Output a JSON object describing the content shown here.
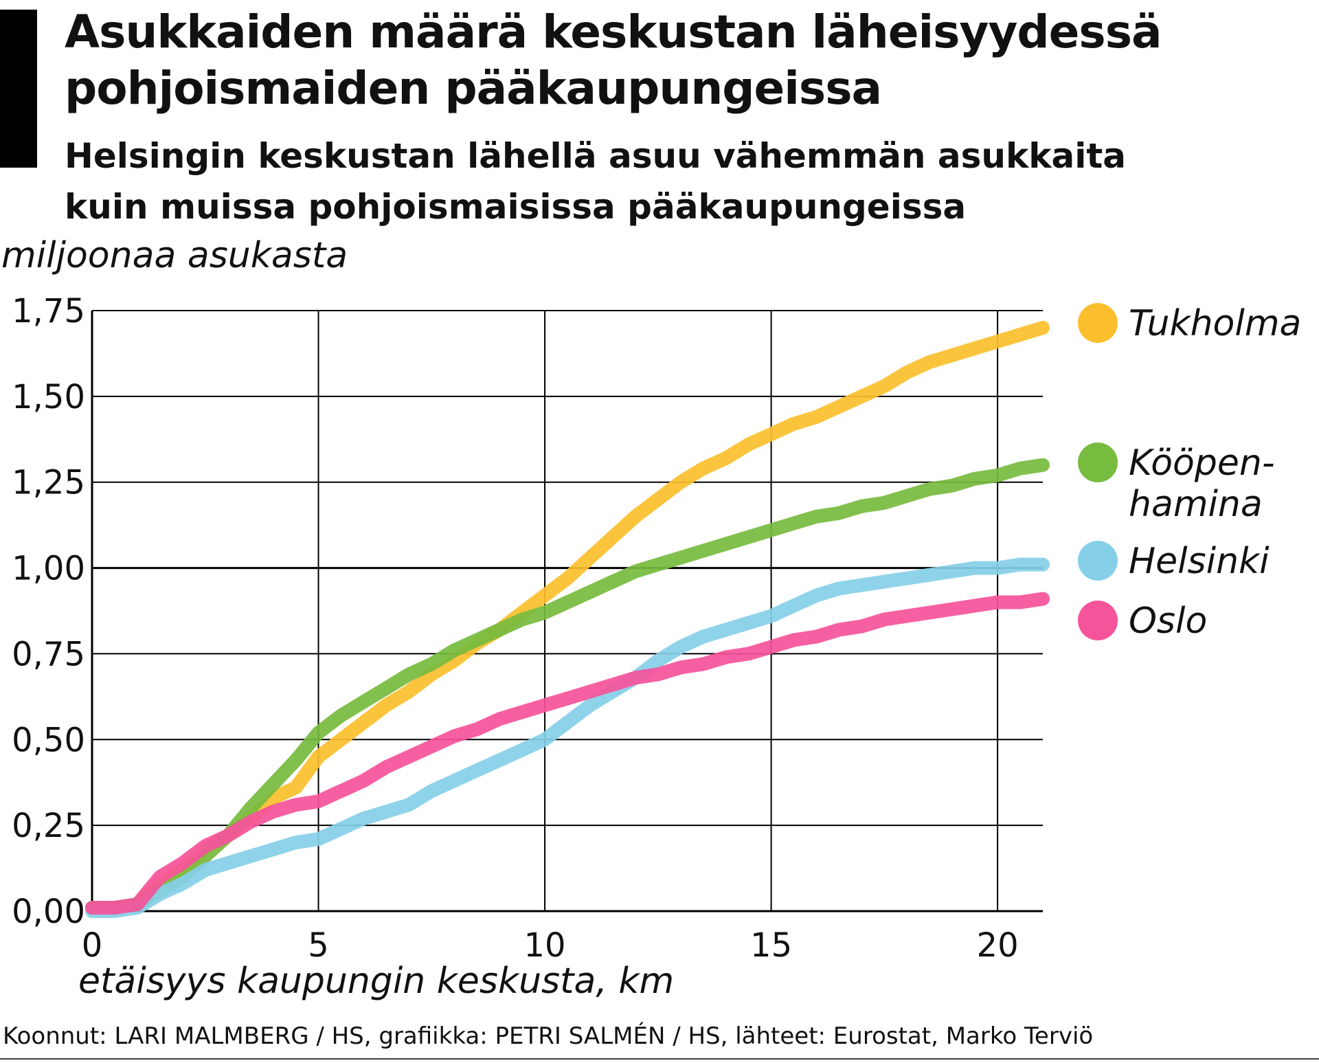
{
  "header": {
    "title_lines": [
      "Asukkaiden määrä keskustan läheisyydessä",
      "pohjoismaiden pääkaupungeissa"
    ],
    "subtitle_lines": [
      "Helsingin keskustan lähellä asuu vähemmän asukkaita",
      "kuin muissa pohjoismaisissa pääkaupungeissa"
    ]
  },
  "footer": {
    "source": "Koonnut: LARI MALMBERG / HS, grafiikka: PETRI SALMÉN / HS, lähteet: Eurostat, Marko Terviö"
  },
  "chart_data": {
    "type": "line",
    "title": "Asukkaiden määrä keskustan läheisyydessä pohjoismaiden pääkaupungeissa",
    "xlabel": "etäisyys kaupungin keskusta, km",
    "ylabel": "miljoonaa asukasta",
    "xlim": [
      0,
      21
    ],
    "ylim": [
      0,
      1.75
    ],
    "x_ticks": [
      0,
      5,
      10,
      15,
      20
    ],
    "x_tick_labels": [
      "0",
      "5",
      "10",
      "15",
      "20"
    ],
    "y_ticks": [
      0,
      0.25,
      0.5,
      0.75,
      1.0,
      1.25,
      1.5,
      1.75
    ],
    "y_tick_labels": [
      "0,00",
      "0,25",
      "0,50",
      "0,75",
      "1,00",
      "1,25",
      "1,50",
      "1,75"
    ],
    "grid": true,
    "legend_position": "right",
    "series": [
      {
        "name": "Tukholma",
        "color": "#fbbf2d",
        "legend_lines": [
          "Tukholma"
        ],
        "x": [
          0,
          0.5,
          1.0,
          1.5,
          2.0,
          2.5,
          3.0,
          3.5,
          4.0,
          4.5,
          5.0,
          5.5,
          6.0,
          6.5,
          7.0,
          7.5,
          8.0,
          8.5,
          9.0,
          9.5,
          10.0,
          10.5,
          11.0,
          11.5,
          12.0,
          12.5,
          13.0,
          13.5,
          14.0,
          14.5,
          15.0,
          15.5,
          16.0,
          16.5,
          17.0,
          17.5,
          18.0,
          18.5,
          19.0,
          19.5,
          20.0,
          20.5,
          21.0
        ],
        "y": [
          0.01,
          0.01,
          0.02,
          0.08,
          0.12,
          0.18,
          0.22,
          0.27,
          0.33,
          0.36,
          0.45,
          0.5,
          0.55,
          0.6,
          0.64,
          0.69,
          0.73,
          0.78,
          0.82,
          0.87,
          0.92,
          0.97,
          1.03,
          1.09,
          1.15,
          1.2,
          1.25,
          1.29,
          1.32,
          1.36,
          1.39,
          1.42,
          1.44,
          1.47,
          1.5,
          1.53,
          1.57,
          1.6,
          1.62,
          1.64,
          1.66,
          1.68,
          1.7
        ]
      },
      {
        "name": "Kööpenhamina",
        "color": "#77bb3f",
        "legend_lines": [
          "Kööpen-",
          "hamina"
        ],
        "x": [
          0,
          0.5,
          1.0,
          1.5,
          2.0,
          2.5,
          3.0,
          3.5,
          4.0,
          4.5,
          5.0,
          5.5,
          6.0,
          6.5,
          7.0,
          7.5,
          8.0,
          8.5,
          9.0,
          9.5,
          10.0,
          10.5,
          11.0,
          11.5,
          12.0,
          12.5,
          13.0,
          13.5,
          14.0,
          14.5,
          15.0,
          15.5,
          16.0,
          16.5,
          17.0,
          17.5,
          18.0,
          18.5,
          19.0,
          19.5,
          20.0,
          20.5,
          21.0
        ],
        "y": [
          0.01,
          0.01,
          0.02,
          0.06,
          0.1,
          0.16,
          0.22,
          0.3,
          0.37,
          0.44,
          0.52,
          0.57,
          0.61,
          0.65,
          0.69,
          0.72,
          0.76,
          0.79,
          0.82,
          0.85,
          0.87,
          0.9,
          0.93,
          0.96,
          0.99,
          1.01,
          1.03,
          1.05,
          1.07,
          1.09,
          1.11,
          1.13,
          1.15,
          1.16,
          1.18,
          1.19,
          1.21,
          1.23,
          1.24,
          1.26,
          1.27,
          1.29,
          1.3
        ]
      },
      {
        "name": "Helsinki",
        "color": "#85cfe8",
        "legend_lines": [
          "Helsinki"
        ],
        "x": [
          0,
          0.5,
          1.0,
          1.5,
          2.0,
          2.5,
          3.0,
          3.5,
          4.0,
          4.5,
          5.0,
          5.5,
          6.0,
          6.5,
          7.0,
          7.5,
          8.0,
          8.5,
          9.0,
          9.5,
          10.0,
          10.5,
          11.0,
          11.5,
          12.0,
          12.5,
          13.0,
          13.5,
          14.0,
          14.5,
          15.0,
          15.5,
          16.0,
          16.5,
          17.0,
          17.5,
          18.0,
          18.5,
          19.0,
          19.5,
          20.0,
          20.5,
          21.0
        ],
        "y": [
          0.0,
          0.0,
          0.01,
          0.05,
          0.08,
          0.12,
          0.14,
          0.16,
          0.18,
          0.2,
          0.21,
          0.24,
          0.27,
          0.29,
          0.31,
          0.35,
          0.38,
          0.41,
          0.44,
          0.47,
          0.5,
          0.55,
          0.6,
          0.64,
          0.68,
          0.73,
          0.77,
          0.8,
          0.82,
          0.84,
          0.86,
          0.89,
          0.92,
          0.94,
          0.95,
          0.96,
          0.97,
          0.98,
          0.99,
          1.0,
          1.0,
          1.01,
          1.01
        ]
      },
      {
        "name": "Oslo",
        "color": "#f5539a",
        "legend_lines": [
          "Oslo"
        ],
        "x": [
          0,
          0.5,
          1.0,
          1.5,
          2.0,
          2.5,
          3.0,
          3.5,
          4.0,
          4.5,
          5.0,
          5.5,
          6.0,
          6.5,
          7.0,
          7.5,
          8.0,
          8.5,
          9.0,
          9.5,
          10.0,
          10.5,
          11.0,
          11.5,
          12.0,
          12.5,
          13.0,
          13.5,
          14.0,
          14.5,
          15.0,
          15.5,
          16.0,
          16.5,
          17.0,
          17.5,
          18.0,
          18.5,
          19.0,
          19.5,
          20.0,
          20.5,
          21.0
        ],
        "y": [
          0.01,
          0.01,
          0.02,
          0.1,
          0.14,
          0.19,
          0.22,
          0.26,
          0.29,
          0.31,
          0.32,
          0.35,
          0.38,
          0.42,
          0.45,
          0.48,
          0.51,
          0.53,
          0.56,
          0.58,
          0.6,
          0.62,
          0.64,
          0.66,
          0.68,
          0.69,
          0.71,
          0.72,
          0.74,
          0.75,
          0.77,
          0.79,
          0.8,
          0.82,
          0.83,
          0.85,
          0.86,
          0.87,
          0.88,
          0.89,
          0.9,
          0.9,
          0.91
        ]
      }
    ]
  }
}
